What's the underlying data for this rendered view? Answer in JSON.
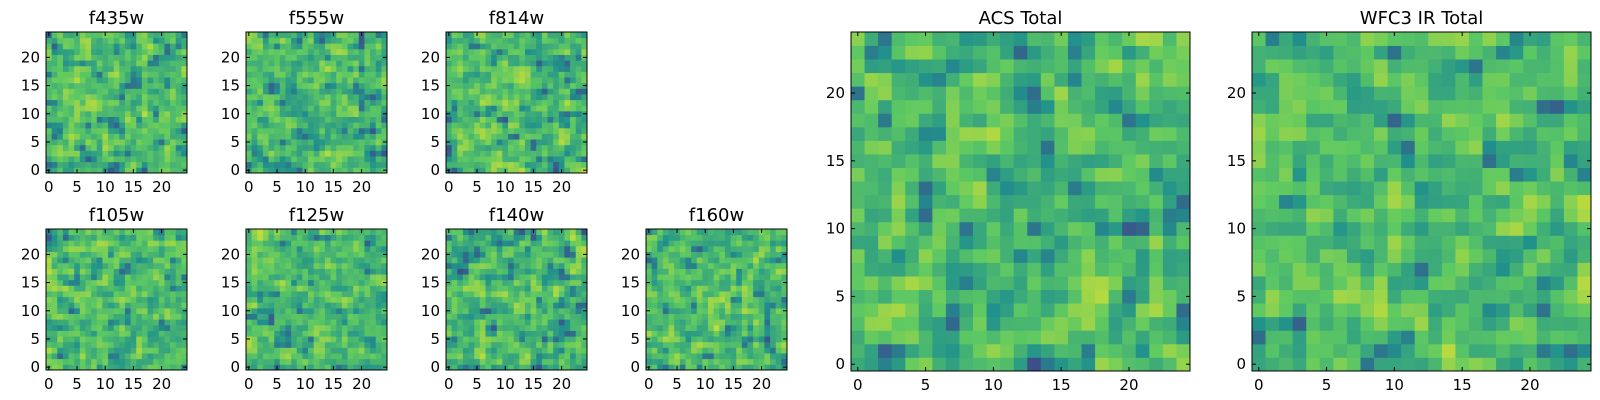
{
  "figure": {
    "description_free": true
  },
  "colormap": [
    "#440154",
    "#3b528b",
    "#21918c",
    "#5ec962",
    "#fde725"
  ],
  "chart_data": [
    {
      "type": "heatmap",
      "title": "f435w",
      "xticks": [
        0,
        5,
        10,
        15,
        20
      ],
      "yticks": [
        0,
        5,
        10,
        15,
        20
      ],
      "xlim": [
        -0.5,
        24.5
      ],
      "ylim": [
        -0.5,
        24.5
      ],
      "grid_size": 25,
      "seed": 11
    },
    {
      "type": "heatmap",
      "title": "f555w",
      "xticks": [
        0,
        5,
        10,
        15,
        20
      ],
      "yticks": [
        0,
        5,
        10,
        15,
        20
      ],
      "xlim": [
        -0.5,
        24.5
      ],
      "ylim": [
        -0.5,
        24.5
      ],
      "grid_size": 25,
      "seed": 23
    },
    {
      "type": "heatmap",
      "title": "f814w",
      "xticks": [
        0,
        5,
        10,
        15,
        20
      ],
      "yticks": [
        0,
        5,
        10,
        15,
        20
      ],
      "xlim": [
        -0.5,
        24.5
      ],
      "ylim": [
        -0.5,
        24.5
      ],
      "grid_size": 25,
      "seed": 37
    },
    {
      "type": "heatmap",
      "title": "f105w",
      "xticks": [
        0,
        5,
        10,
        15,
        20
      ],
      "yticks": [
        0,
        5,
        10,
        15,
        20
      ],
      "xlim": [
        -0.5,
        24.5
      ],
      "ylim": [
        -0.5,
        24.5
      ],
      "grid_size": 25,
      "seed": 41
    },
    {
      "type": "heatmap",
      "title": "f125w",
      "xticks": [
        0,
        5,
        10,
        15,
        20
      ],
      "yticks": [
        0,
        5,
        10,
        15,
        20
      ],
      "xlim": [
        -0.5,
        24.5
      ],
      "ylim": [
        -0.5,
        24.5
      ],
      "grid_size": 25,
      "seed": 53
    },
    {
      "type": "heatmap",
      "title": "f140w",
      "xticks": [
        0,
        5,
        10,
        15,
        20
      ],
      "yticks": [
        0,
        5,
        10,
        15,
        20
      ],
      "xlim": [
        -0.5,
        24.5
      ],
      "ylim": [
        -0.5,
        24.5
      ],
      "grid_size": 25,
      "seed": 67
    },
    {
      "type": "heatmap",
      "title": "f160w",
      "xticks": [
        0,
        5,
        10,
        15,
        20
      ],
      "yticks": [
        0,
        5,
        10,
        15,
        20
      ],
      "xlim": [
        -0.5,
        24.5
      ],
      "ylim": [
        -0.5,
        24.5
      ],
      "grid_size": 25,
      "seed": 79
    },
    {
      "type": "heatmap",
      "title": "ACS Total",
      "xticks": [
        0,
        5,
        10,
        15,
        20
      ],
      "yticks": [
        0,
        5,
        10,
        15,
        20
      ],
      "xlim": [
        -0.5,
        24.5
      ],
      "ylim": [
        -0.5,
        24.5
      ],
      "grid_size": 25,
      "seed": 97
    },
    {
      "type": "heatmap",
      "title": "WFC3 IR Total",
      "xticks": [
        0,
        5,
        10,
        15,
        20
      ],
      "yticks": [
        0,
        5,
        10,
        15,
        20
      ],
      "xlim": [
        -0.5,
        24.5
      ],
      "ylim": [
        -0.5,
        24.5
      ],
      "grid_size": 25,
      "seed": 113
    }
  ]
}
